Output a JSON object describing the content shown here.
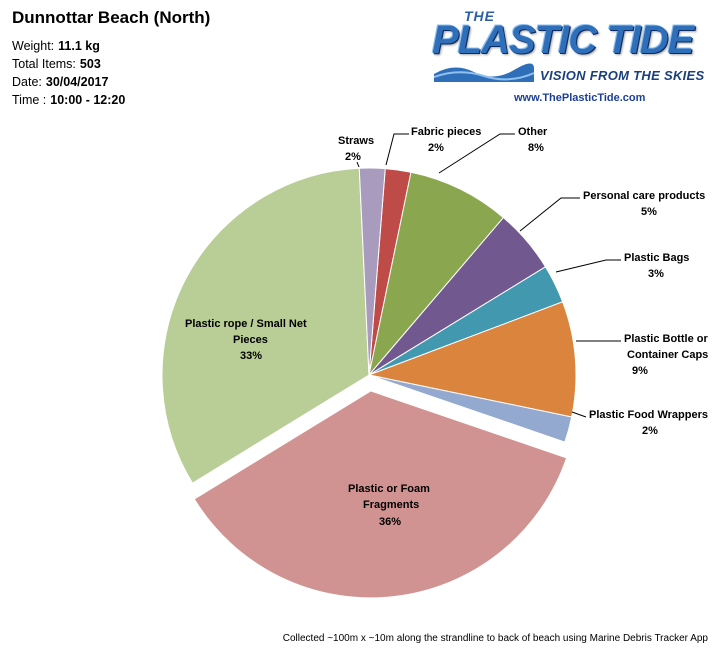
{
  "header": {
    "title": "Dunnottar Beach (North)",
    "weight_label": "Weight:",
    "weight_value": "11.1 kg",
    "items_label": "Total Items:",
    "items_value": "503",
    "date_label": "Date:",
    "date_value": "30/04/2017",
    "time_label": "Time :",
    "time_value": "10:00 - 12:20"
  },
  "logo": {
    "the": "THE",
    "name": "PLASTIC TIDE",
    "tagline": "VISION FROM THE SKIES",
    "url": "www.ThePlasticTide.com"
  },
  "footer": "Collected ~100m x ~10m along the strandline to back of beach using Marine Debris Tracker App",
  "chart_data": {
    "type": "pie",
    "unit": "%",
    "slices": [
      {
        "label": "Fabric pieces",
        "value": 2,
        "color": "#be4b48"
      },
      {
        "label": "Other",
        "value": 8,
        "color": "#8aa64f"
      },
      {
        "label": "Personal care products",
        "value": 5,
        "color": "#71588f"
      },
      {
        "label": "Plastic Bags",
        "value": 3,
        "color": "#4298af"
      },
      {
        "label": "Plastic Bottle or Container Caps",
        "value": 9,
        "color": "#db843d"
      },
      {
        "label": "Plastic Food Wrappers",
        "value": 2,
        "color": "#93a9cf"
      },
      {
        "label": "Plastic or Foam Fragments",
        "value": 36,
        "color": "#d19392"
      },
      {
        "label": "Plastic rope / Small Net Pieces",
        "value": 33,
        "color": "#b9cd96"
      },
      {
        "label": "Straws",
        "value": 2,
        "color": "#a99bbd"
      }
    ]
  }
}
